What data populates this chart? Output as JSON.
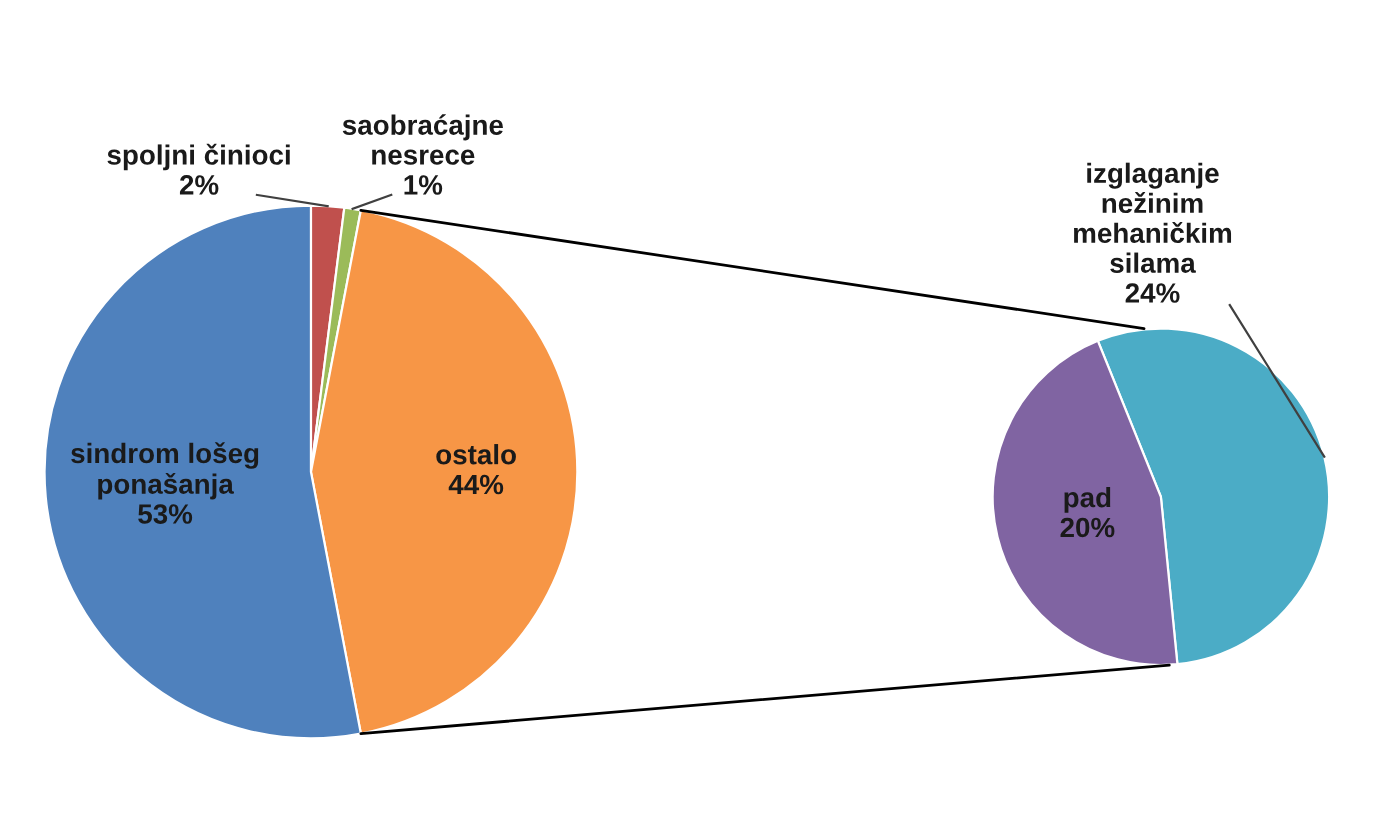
{
  "chart_data": [
    {
      "type": "pie",
      "categories": [
        "spoljni činioci",
        "saobraćajne nesrece",
        "ostalo",
        "sindrom lošeg ponašanja"
      ],
      "values": [
        2,
        1,
        44,
        53
      ],
      "value_labels": [
        "2%",
        "1%",
        "44%",
        "53%"
      ],
      "colors": [
        "#c0504d",
        "#9bbb59",
        "#f79646",
        "#4f81bd"
      ]
    },
    {
      "type": "pie",
      "categories": [
        "izglaganje nežinim mehaničkim silama",
        "pad"
      ],
      "values": [
        24,
        20
      ],
      "value_labels": [
        "24%",
        "20%"
      ],
      "colors": [
        "#4bacc6",
        "#8064a2"
      ]
    }
  ]
}
